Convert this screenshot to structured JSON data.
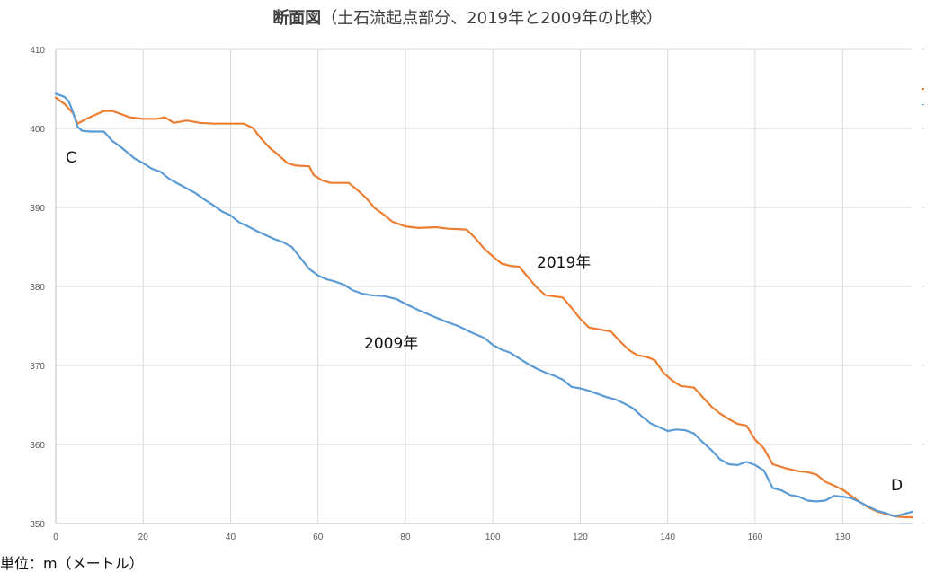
{
  "chart_data": {
    "type": "line",
    "title_main": "断面図",
    "title_sub": "（土石流起点部分、2019年と2009年の比較）",
    "unit_label": "単位：m（メートル）",
    "xlim": [
      0,
      196
    ],
    "ylim": [
      350,
      410
    ],
    "x_ticks": [
      0,
      20,
      40,
      60,
      80,
      100,
      120,
      140,
      160,
      180
    ],
    "y_ticks": [
      350,
      360,
      370,
      380,
      390,
      400,
      410
    ],
    "grid": true,
    "colors": {
      "series_2019": "#ED7D31",
      "series_2009": "#5B9BD5",
      "grid": "#D9D9D9",
      "axis": "#BFBFBF"
    },
    "annotations": {
      "point_c": "C",
      "point_d": "D",
      "label_2019": "2019年",
      "label_2009": "2009年"
    },
    "series": [
      {
        "key": "y2019",
        "color": "#ED7D31",
        "points": [
          [
            0,
            403.9
          ],
          [
            2,
            403.1
          ],
          [
            4,
            401.9
          ],
          [
            5,
            400.6
          ],
          [
            7,
            401.2
          ],
          [
            9,
            401.7
          ],
          [
            11,
            402.2
          ],
          [
            13,
            402.2
          ],
          [
            15,
            401.8
          ],
          [
            17,
            401.4
          ],
          [
            20,
            401.2
          ],
          [
            23,
            401.2
          ],
          [
            25,
            401.4
          ],
          [
            27,
            400.7
          ],
          [
            30,
            401.0
          ],
          [
            33,
            400.7
          ],
          [
            36,
            400.6
          ],
          [
            40,
            400.6
          ],
          [
            43,
            400.6
          ],
          [
            45,
            400.1
          ],
          [
            47,
            398.7
          ],
          [
            49,
            397.5
          ],
          [
            51,
            396.6
          ],
          [
            53,
            395.6
          ],
          [
            55,
            395.3
          ],
          [
            58,
            395.2
          ],
          [
            59,
            394.1
          ],
          [
            61,
            393.4
          ],
          [
            63,
            393.1
          ],
          [
            67,
            393.1
          ],
          [
            69,
            392.2
          ],
          [
            71,
            391.2
          ],
          [
            73,
            389.9
          ],
          [
            75,
            389.1
          ],
          [
            77,
            388.2
          ],
          [
            80,
            387.6
          ],
          [
            83,
            387.4
          ],
          [
            87,
            387.5
          ],
          [
            90,
            387.3
          ],
          [
            94,
            387.2
          ],
          [
            96,
            386.1
          ],
          [
            98,
            384.8
          ],
          [
            100,
            383.8
          ],
          [
            102,
            382.9
          ],
          [
            104,
            382.6
          ],
          [
            106,
            382.5
          ],
          [
            108,
            381.2
          ],
          [
            110,
            379.9
          ],
          [
            112,
            378.9
          ],
          [
            116,
            378.6
          ],
          [
            118,
            377.3
          ],
          [
            120,
            375.9
          ],
          [
            122,
            374.8
          ],
          [
            124,
            374.6
          ],
          [
            127,
            374.3
          ],
          [
            129,
            373.1
          ],
          [
            131,
            372.0
          ],
          [
            133,
            371.3
          ],
          [
            135,
            371.1
          ],
          [
            137,
            370.7
          ],
          [
            139,
            369.1
          ],
          [
            141,
            368.1
          ],
          [
            143,
            367.4
          ],
          [
            146,
            367.2
          ],
          [
            148,
            366.0
          ],
          [
            150,
            364.8
          ],
          [
            152,
            363.9
          ],
          [
            154,
            363.2
          ],
          [
            156,
            362.6
          ],
          [
            158,
            362.4
          ],
          [
            160,
            360.6
          ],
          [
            162,
            359.5
          ],
          [
            164,
            357.5
          ],
          [
            167,
            357.0
          ],
          [
            170,
            356.6
          ],
          [
            172,
            356.5
          ],
          [
            174,
            356.2
          ],
          [
            176,
            355.3
          ],
          [
            178,
            354.8
          ],
          [
            180,
            354.3
          ],
          [
            182,
            353.5
          ],
          [
            184,
            352.7
          ],
          [
            186,
            352.0
          ],
          [
            188,
            351.5
          ],
          [
            190,
            351.2
          ],
          [
            192,
            350.9
          ],
          [
            194,
            350.8
          ],
          [
            196,
            350.8
          ]
        ]
      },
      {
        "key": "y2009",
        "color": "#5B9BD5",
        "points": [
          [
            0,
            404.4
          ],
          [
            2,
            404.0
          ],
          [
            3,
            403.4
          ],
          [
            4,
            402.0
          ],
          [
            5,
            400.2
          ],
          [
            6,
            399.7
          ],
          [
            8,
            399.6
          ],
          [
            11,
            399.6
          ],
          [
            13,
            398.4
          ],
          [
            15,
            397.6
          ],
          [
            18,
            396.2
          ],
          [
            20,
            395.6
          ],
          [
            22,
            394.9
          ],
          [
            24,
            394.5
          ],
          [
            26,
            393.6
          ],
          [
            28,
            393.0
          ],
          [
            30,
            392.4
          ],
          [
            32,
            391.8
          ],
          [
            34,
            391.0
          ],
          [
            36,
            390.3
          ],
          [
            38,
            389.5
          ],
          [
            40,
            389.0
          ],
          [
            42,
            388.1
          ],
          [
            44,
            387.6
          ],
          [
            46,
            387.0
          ],
          [
            48,
            386.5
          ],
          [
            50,
            386.0
          ],
          [
            52,
            385.6
          ],
          [
            54,
            385.0
          ],
          [
            56,
            383.6
          ],
          [
            58,
            382.2
          ],
          [
            60,
            381.4
          ],
          [
            62,
            380.9
          ],
          [
            64,
            380.6
          ],
          [
            66,
            380.2
          ],
          [
            68,
            379.5
          ],
          [
            70,
            379.1
          ],
          [
            72,
            378.9
          ],
          [
            75,
            378.8
          ],
          [
            78,
            378.4
          ],
          [
            80,
            377.8
          ],
          [
            83,
            377.0
          ],
          [
            86,
            376.3
          ],
          [
            89,
            375.6
          ],
          [
            92,
            375.0
          ],
          [
            95,
            374.2
          ],
          [
            98,
            373.5
          ],
          [
            100,
            372.6
          ],
          [
            102,
            372.0
          ],
          [
            104,
            371.6
          ],
          [
            106,
            370.9
          ],
          [
            108,
            370.2
          ],
          [
            110,
            369.6
          ],
          [
            112,
            369.1
          ],
          [
            114,
            368.7
          ],
          [
            116,
            368.2
          ],
          [
            118,
            367.3
          ],
          [
            120,
            367.1
          ],
          [
            122,
            366.8
          ],
          [
            124,
            366.4
          ],
          [
            126,
            366.0
          ],
          [
            128,
            365.7
          ],
          [
            130,
            365.2
          ],
          [
            132,
            364.6
          ],
          [
            134,
            363.6
          ],
          [
            136,
            362.7
          ],
          [
            138,
            362.2
          ],
          [
            140,
            361.7
          ],
          [
            142,
            361.9
          ],
          [
            144,
            361.8
          ],
          [
            146,
            361.4
          ],
          [
            148,
            360.3
          ],
          [
            150,
            359.3
          ],
          [
            152,
            358.1
          ],
          [
            154,
            357.5
          ],
          [
            156,
            357.4
          ],
          [
            158,
            357.8
          ],
          [
            160,
            357.4
          ],
          [
            162,
            356.7
          ],
          [
            164,
            354.5
          ],
          [
            166,
            354.2
          ],
          [
            168,
            353.6
          ],
          [
            170,
            353.4
          ],
          [
            172,
            352.9
          ],
          [
            174,
            352.8
          ],
          [
            176,
            352.9
          ],
          [
            178,
            353.5
          ],
          [
            180,
            353.4
          ],
          [
            182,
            353.2
          ],
          [
            184,
            352.7
          ],
          [
            186,
            352.1
          ],
          [
            188,
            351.6
          ],
          [
            190,
            351.3
          ],
          [
            192,
            350.9
          ],
          [
            194,
            351.2
          ],
          [
            196,
            351.5
          ]
        ]
      }
    ]
  }
}
